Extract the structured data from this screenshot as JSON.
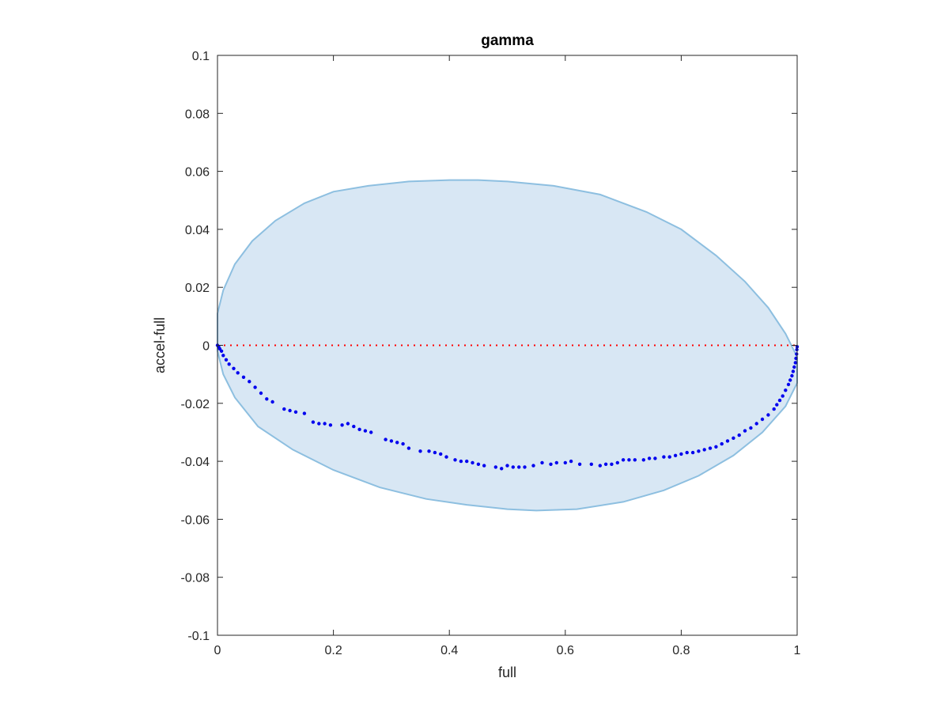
{
  "chart_data": {
    "type": "scatter",
    "title": "gamma",
    "xlabel": "full",
    "ylabel": "accel-full",
    "xlim": [
      0,
      1
    ],
    "ylim": [
      -0.1,
      0.1
    ],
    "grid": false,
    "x_ticks": [
      0,
      0.2,
      0.4,
      0.6,
      0.8,
      1
    ],
    "x_tick_labels": [
      "0",
      "0.2",
      "0.4",
      "0.6",
      "0.8",
      "1"
    ],
    "y_ticks": [
      -0.1,
      -0.08,
      -0.06,
      -0.04,
      -0.02,
      0,
      0.02,
      0.04,
      0.06,
      0.08,
      0.1
    ],
    "y_tick_labels": [
      "-0.1",
      "-0.08",
      "-0.06",
      "-0.04",
      "-0.02",
      "0",
      "0.02",
      "0.04",
      "0.06",
      "0.08",
      "0.1"
    ],
    "reference_line": {
      "y": 0,
      "style": "dotted",
      "color": "#ff0000"
    },
    "confidence_region": {
      "shape": "ellipse",
      "fill": "#d8e7f4",
      "edge": "#8dbfe0",
      "boundary": [
        [
          0.0,
          0.011
        ],
        [
          0.01,
          0.019
        ],
        [
          0.03,
          0.028
        ],
        [
          0.06,
          0.036
        ],
        [
          0.1,
          0.043
        ],
        [
          0.15,
          0.049
        ],
        [
          0.2,
          0.053
        ],
        [
          0.26,
          0.055
        ],
        [
          0.33,
          0.0565
        ],
        [
          0.4,
          0.057
        ],
        [
          0.45,
          0.057
        ],
        [
          0.5,
          0.0565
        ],
        [
          0.58,
          0.055
        ],
        [
          0.66,
          0.052
        ],
        [
          0.74,
          0.046
        ],
        [
          0.8,
          0.04
        ],
        [
          0.86,
          0.031
        ],
        [
          0.91,
          0.022
        ],
        [
          0.95,
          0.013
        ],
        [
          0.98,
          0.004
        ],
        [
          1.0,
          -0.004
        ],
        [
          1.0,
          -0.013
        ],
        [
          0.98,
          -0.021
        ],
        [
          0.94,
          -0.03
        ],
        [
          0.89,
          -0.038
        ],
        [
          0.83,
          -0.045
        ],
        [
          0.77,
          -0.05
        ],
        [
          0.7,
          -0.054
        ],
        [
          0.62,
          -0.0565
        ],
        [
          0.55,
          -0.057
        ],
        [
          0.5,
          -0.0565
        ],
        [
          0.43,
          -0.055
        ],
        [
          0.36,
          -0.053
        ],
        [
          0.28,
          -0.049
        ],
        [
          0.2,
          -0.043
        ],
        [
          0.13,
          -0.036
        ],
        [
          0.07,
          -0.028
        ],
        [
          0.03,
          -0.018
        ],
        [
          0.01,
          -0.01
        ],
        [
          0.0,
          -0.002
        ]
      ]
    },
    "series": [
      {
        "color": "#0000ee",
        "points": [
          [
            0.0,
            0.0
          ],
          [
            0.002,
            -0.0005
          ],
          [
            0.004,
            -0.0012
          ],
          [
            0.007,
            -0.002
          ],
          [
            0.01,
            -0.0035
          ],
          [
            0.015,
            -0.005
          ],
          [
            0.02,
            -0.0065
          ],
          [
            0.028,
            -0.008
          ],
          [
            0.035,
            -0.0095
          ],
          [
            0.045,
            -0.011
          ],
          [
            0.055,
            -0.0125
          ],
          [
            0.065,
            -0.0145
          ],
          [
            0.075,
            -0.0165
          ],
          [
            0.085,
            -0.0185
          ],
          [
            0.095,
            -0.0195
          ],
          [
            0.115,
            -0.022
          ],
          [
            0.125,
            -0.0225
          ],
          [
            0.135,
            -0.023
          ],
          [
            0.15,
            -0.0235
          ],
          [
            0.165,
            -0.0265
          ],
          [
            0.175,
            -0.027
          ],
          [
            0.185,
            -0.027
          ],
          [
            0.195,
            -0.0275
          ],
          [
            0.215,
            -0.0275
          ],
          [
            0.225,
            -0.027
          ],
          [
            0.235,
            -0.028
          ],
          [
            0.245,
            -0.029
          ],
          [
            0.255,
            -0.0295
          ],
          [
            0.265,
            -0.03
          ],
          [
            0.29,
            -0.0325
          ],
          [
            0.3,
            -0.033
          ],
          [
            0.31,
            -0.0335
          ],
          [
            0.32,
            -0.034
          ],
          [
            0.33,
            -0.0355
          ],
          [
            0.35,
            -0.0365
          ],
          [
            0.365,
            -0.0365
          ],
          [
            0.375,
            -0.037
          ],
          [
            0.385,
            -0.0375
          ],
          [
            0.395,
            -0.0385
          ],
          [
            0.41,
            -0.0395
          ],
          [
            0.42,
            -0.04
          ],
          [
            0.43,
            -0.04
          ],
          [
            0.44,
            -0.0405
          ],
          [
            0.45,
            -0.041
          ],
          [
            0.46,
            -0.0415
          ],
          [
            0.48,
            -0.042
          ],
          [
            0.49,
            -0.0425
          ],
          [
            0.5,
            -0.0415
          ],
          [
            0.51,
            -0.042
          ],
          [
            0.52,
            -0.042
          ],
          [
            0.53,
            -0.042
          ],
          [
            0.545,
            -0.0415
          ],
          [
            0.56,
            -0.0405
          ],
          [
            0.575,
            -0.041
          ],
          [
            0.585,
            -0.0405
          ],
          [
            0.6,
            -0.0405
          ],
          [
            0.61,
            -0.04
          ],
          [
            0.625,
            -0.041
          ],
          [
            0.645,
            -0.041
          ],
          [
            0.66,
            -0.0415
          ],
          [
            0.67,
            -0.041
          ],
          [
            0.68,
            -0.041
          ],
          [
            0.69,
            -0.0405
          ],
          [
            0.7,
            -0.0395
          ],
          [
            0.71,
            -0.0395
          ],
          [
            0.72,
            -0.0395
          ],
          [
            0.735,
            -0.0395
          ],
          [
            0.745,
            -0.039
          ],
          [
            0.755,
            -0.039
          ],
          [
            0.77,
            -0.0385
          ],
          [
            0.78,
            -0.0385
          ],
          [
            0.79,
            -0.038
          ],
          [
            0.8,
            -0.0375
          ],
          [
            0.81,
            -0.037
          ],
          [
            0.82,
            -0.037
          ],
          [
            0.83,
            -0.0365
          ],
          [
            0.84,
            -0.036
          ],
          [
            0.85,
            -0.0355
          ],
          [
            0.86,
            -0.035
          ],
          [
            0.87,
            -0.034
          ],
          [
            0.88,
            -0.033
          ],
          [
            0.89,
            -0.032
          ],
          [
            0.9,
            -0.031
          ],
          [
            0.91,
            -0.0295
          ],
          [
            0.92,
            -0.0285
          ],
          [
            0.93,
            -0.027
          ],
          [
            0.94,
            -0.0255
          ],
          [
            0.95,
            -0.024
          ],
          [
            0.96,
            -0.022
          ],
          [
            0.965,
            -0.0205
          ],
          [
            0.97,
            -0.019
          ],
          [
            0.975,
            -0.0175
          ],
          [
            0.98,
            -0.0155
          ],
          [
            0.985,
            -0.0135
          ],
          [
            0.988,
            -0.012
          ],
          [
            0.991,
            -0.0105
          ],
          [
            0.993,
            -0.009
          ],
          [
            0.995,
            -0.0075
          ],
          [
            0.997,
            -0.006
          ],
          [
            0.998,
            -0.0045
          ],
          [
            0.999,
            -0.003
          ],
          [
            0.9995,
            -0.0015
          ],
          [
            1.0,
            -0.0005
          ]
        ]
      }
    ]
  }
}
